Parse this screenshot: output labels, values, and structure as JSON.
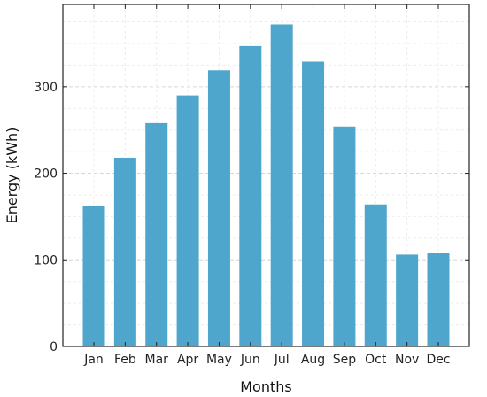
{
  "chart_data": {
    "type": "bar",
    "title": "",
    "xlabel": "Months",
    "ylabel": "Energy (kWh)",
    "categories": [
      "Jan",
      "Feb",
      "Mar",
      "Apr",
      "May",
      "Jun",
      "Jul",
      "Aug",
      "Sep",
      "Oct",
      "Nov",
      "Dec"
    ],
    "values": [
      162,
      218,
      258,
      290,
      319,
      347,
      372,
      329,
      254,
      164,
      106,
      108
    ],
    "ylim": [
      0,
      395
    ],
    "yticks": [
      0,
      100,
      200,
      300
    ],
    "ytick_labels": [
      "0",
      "100",
      "200",
      "300"
    ],
    "grid": true,
    "bar_color": "#4ea6cc"
  }
}
